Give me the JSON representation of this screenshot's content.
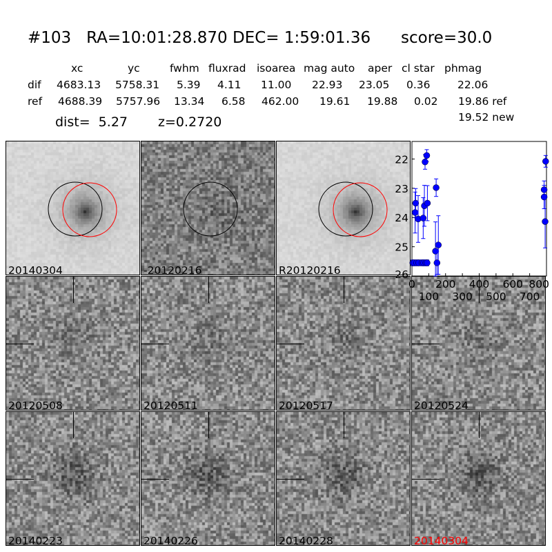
{
  "title": {
    "id": "#103",
    "ra": "RA=10:01:28.870",
    "dec": "DEC= 1:59:01.36",
    "score": "score=30.0"
  },
  "table": {
    "columns": [
      "xc",
      "yc",
      "fwhm",
      "fluxrad",
      "isoarea",
      "mag auto",
      "aper",
      "cl star",
      "phmag"
    ],
    "rows": [
      {
        "name": "dif",
        "values": [
          "4683.13",
          "5758.31",
          "5.39",
          "4.11",
          "11.00",
          "22.93",
          "23.05",
          "0.36",
          "22.06"
        ]
      },
      {
        "name": "ref",
        "values": [
          "4688.39",
          "5757.96",
          "13.34",
          "6.58",
          "462.00",
          "19.61",
          "19.88",
          "0.02",
          "19.86 ref"
        ]
      }
    ],
    "phmag_new": "19.52 new"
  },
  "dist": "dist=  5.27",
  "z": "z=0.2720",
  "stamps": [
    {
      "label": "20140304",
      "type": "new",
      "circles": true
    },
    {
      "label": "-20120216",
      "type": "diff",
      "circles": true
    },
    {
      "label": "R20120216",
      "type": "ref",
      "circles": true
    },
    {
      "label": "20120508",
      "type": "epoch"
    },
    {
      "label": "20120511",
      "type": "epoch"
    },
    {
      "label": "20120517",
      "type": "epoch"
    },
    {
      "label": "20120524",
      "type": "epoch"
    },
    {
      "label": "20140223",
      "type": "epoch"
    },
    {
      "label": "20140226",
      "type": "epoch"
    },
    {
      "label": "20140228",
      "type": "epoch"
    },
    {
      "label": "20140304",
      "type": "epoch",
      "highlight": true
    }
  ],
  "colors": {
    "highlight_label": "#ff0000",
    "points": "#0000ff",
    "circle_ref": "#000000",
    "circle_new": "#ff0000"
  },
  "chart_data": {
    "type": "scatter",
    "xlim": [
      0,
      800
    ],
    "ylim": [
      26,
      21.4
    ],
    "y_inverted": true,
    "xticks": [
      "0",
      "100",
      "200",
      "300",
      "400",
      "500",
      "600",
      "700",
      "800"
    ],
    "yticks": [
      "22",
      "23",
      "24",
      "25",
      "26"
    ],
    "points": [
      {
        "x": 5,
        "y": 25.55,
        "err": 0.1
      },
      {
        "x": 12,
        "y": 25.55,
        "err": 0.1
      },
      {
        "x": 28,
        "y": 25.55,
        "err": 0.1
      },
      {
        "x": 40,
        "y": 25.55,
        "err": 0.1
      },
      {
        "x": 60,
        "y": 25.55,
        "err": 0.1
      },
      {
        "x": 70,
        "y": 25.55,
        "err": 0.1
      },
      {
        "x": 82,
        "y": 25.55,
        "err": 0.1
      },
      {
        "x": 90,
        "y": 25.55,
        "err": 0.1
      },
      {
        "x": 19,
        "y": 23.83,
        "err": 0.7
      },
      {
        "x": 22,
        "y": 23.51,
        "err": 0.5
      },
      {
        "x": 37,
        "y": 24.05,
        "err": 0.8
      },
      {
        "x": 67,
        "y": 24.02,
        "err": 0.7
      },
      {
        "x": 74,
        "y": 23.6,
        "err": 0.7
      },
      {
        "x": 78,
        "y": 22.1,
        "err": 0.25
      },
      {
        "x": 88,
        "y": 21.88,
        "err": 0.2
      },
      {
        "x": 92,
        "y": 23.51,
        "err": 0.6
      },
      {
        "x": 144,
        "y": 22.98,
        "err": 0.3
      },
      {
        "x": 140,
        "y": 25.15,
        "err": 1.0
      },
      {
        "x": 149,
        "y": 25.55,
        "err": 0.4
      },
      {
        "x": 157,
        "y": 24.94,
        "err": 1.0
      },
      {
        "x": 795,
        "y": 22.08,
        "err": 0.2
      },
      {
        "x": 786,
        "y": 23.05,
        "err": 0.3
      },
      {
        "x": 786,
        "y": 23.3,
        "err": 0.4
      },
      {
        "x": 792,
        "y": 24.14,
        "err": 0.9
      }
    ]
  }
}
